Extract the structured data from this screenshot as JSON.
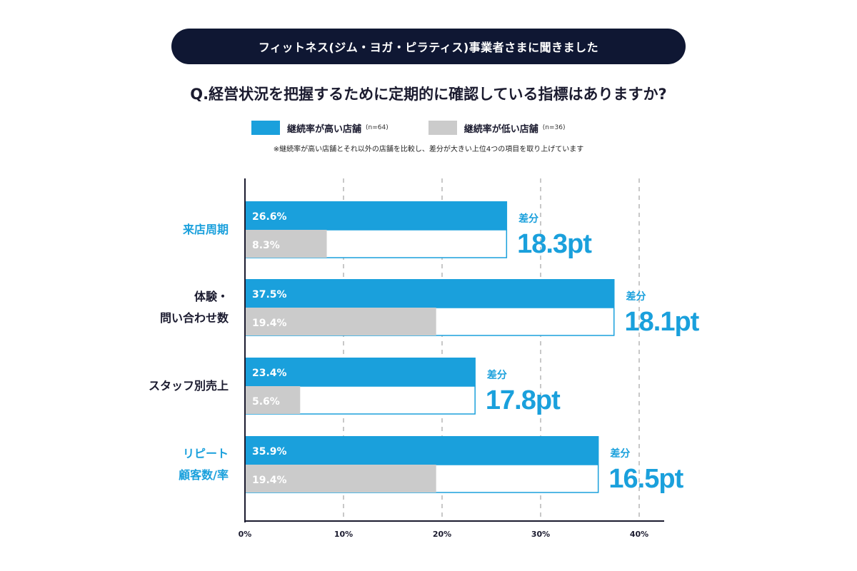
{
  "banner": "フィットネス(ジム・ヨガ・ピラティス)事業者さまに聞きました",
  "question": "Q.経営状況を把握するために定期的に確認している指標はありますか?",
  "legend": {
    "high_label": "継続率が高い店舗",
    "high_n": "(n=64)",
    "low_label": "継続率が低い店舗",
    "low_n": "(n=36)"
  },
  "note": "※継続率が高い店舗とそれ以外の店舗を比較し、差分が大きい上位4つの項目を取り上げています",
  "colors": {
    "high": "#1aa0dc",
    "low": "#cbcbcb",
    "diff_text": "#1aa0dc",
    "highlight_label": "#1aa0dc",
    "label": "#1b1b2f"
  },
  "chart_data": {
    "type": "bar",
    "orientation": "horizontal",
    "categories": [
      "来店周期",
      "体験・\n問い合わせ数",
      "スタッフ別売上",
      "リピート\n顧客数/率"
    ],
    "highlighted_categories": [
      0,
      3
    ],
    "series": [
      {
        "name": "継続率が高い店舗",
        "values": [
          26.6,
          37.5,
          23.4,
          35.9
        ],
        "labels": [
          "26.6%",
          "37.5%",
          "23.4%",
          "35.9%"
        ]
      },
      {
        "name": "継続率が低い店舗",
        "values": [
          8.3,
          19.4,
          5.6,
          19.4
        ],
        "labels": [
          "8.3%",
          "19.4%",
          "5.6%",
          "19.4%"
        ]
      }
    ],
    "diff_title": "差分",
    "diffs": [
      "18.3pt",
      "18.1pt",
      "17.8pt",
      "16.5pt"
    ],
    "xlim": [
      0,
      42
    ],
    "xticks": [
      0,
      10,
      20,
      30,
      40
    ],
    "xtick_labels": [
      "0%",
      "10%",
      "20%",
      "30%",
      "40%"
    ],
    "grid": "vertical-dashed"
  }
}
